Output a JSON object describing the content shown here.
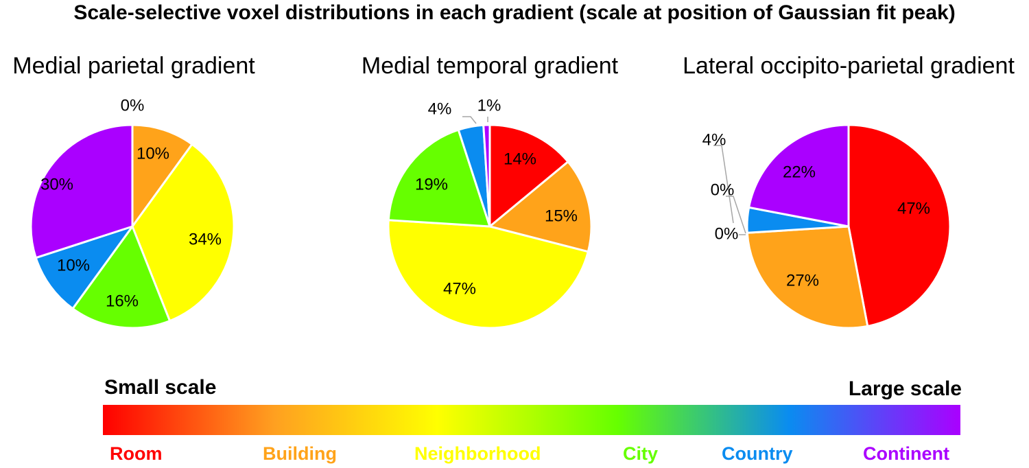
{
  "title": "Scale-selective voxel distributions in each gradient (scale at position of Gaussian fit peak)",
  "colorbar": {
    "left_label": "Small scale",
    "right_label": "Large scale",
    "categories": [
      {
        "label": "Room",
        "color": "#ff0000"
      },
      {
        "label": "Building",
        "color": "#ffa31a"
      },
      {
        "label": "Neighborhood",
        "color": "#ffff00"
      },
      {
        "label": "City",
        "color": "#66ff00"
      },
      {
        "label": "Country",
        "color": "#0a8cf0"
      },
      {
        "label": "Continent",
        "color": "#aa00ff"
      }
    ]
  },
  "chart_data": [
    {
      "type": "pie",
      "title": "Medial parietal gradient",
      "categories": [
        "Room",
        "Building",
        "Neighborhood",
        "City",
        "Country",
        "Continent"
      ],
      "values": [
        0,
        10,
        34,
        16,
        10,
        30
      ],
      "labels": [
        "0%",
        "10%",
        "34%",
        "16%",
        "10%",
        "30%"
      ],
      "colors": [
        "#ff0000",
        "#ffa31a",
        "#ffff00",
        "#66ff00",
        "#0a8cf0",
        "#aa00ff"
      ]
    },
    {
      "type": "pie",
      "title": "Medial temporal gradient",
      "categories": [
        "Room",
        "Building",
        "Neighborhood",
        "City",
        "Country",
        "Continent"
      ],
      "values": [
        14,
        15,
        47,
        19,
        4,
        1
      ],
      "labels": [
        "14%",
        "15%",
        "47%",
        "19%",
        "4%",
        "1%"
      ],
      "colors": [
        "#ff0000",
        "#ffa31a",
        "#ffff00",
        "#66ff00",
        "#0a8cf0",
        "#aa00ff"
      ]
    },
    {
      "type": "pie",
      "title": "Lateral occipito-parietal gradient",
      "categories": [
        "Room",
        "Building",
        "Neighborhood",
        "City",
        "Country",
        "Continent"
      ],
      "values": [
        47,
        27,
        0,
        0,
        4,
        22
      ],
      "labels": [
        "47%",
        "27%",
        "0%",
        "0%",
        "4%",
        "22%"
      ],
      "colors": [
        "#ff0000",
        "#ffa31a",
        "#ffff00",
        "#66ff00",
        "#0a8cf0",
        "#aa00ff"
      ]
    }
  ]
}
